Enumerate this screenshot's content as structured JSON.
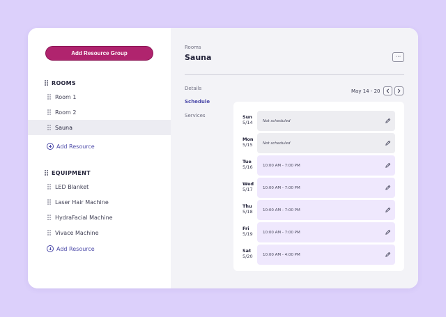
{
  "sidebar": {
    "add_group_label": "Add Resource Group",
    "groups": [
      {
        "title": "ROOMS",
        "items": [
          {
            "label": "Room 1",
            "active": false
          },
          {
            "label": "Room 2",
            "active": false
          },
          {
            "label": "Sauna",
            "active": true
          }
        ],
        "add_label": "Add Resource"
      },
      {
        "title": "EQUIPMENT",
        "items": [
          {
            "label": "LED Blanket",
            "active": false
          },
          {
            "label": "Laser Hair Machine",
            "active": false
          },
          {
            "label": "HydraFacial Machine",
            "active": false
          },
          {
            "label": "Vivace Machine",
            "active": false
          }
        ],
        "add_label": "Add Resource"
      }
    ]
  },
  "main": {
    "breadcrumb": "Rooms",
    "title": "Sauna",
    "more_label": "···",
    "tabs": [
      {
        "label": "Details",
        "active": false
      },
      {
        "label": "Schedule",
        "active": true
      },
      {
        "label": "Services",
        "active": false
      }
    ],
    "date_range": "May 14 - 20",
    "schedule": [
      {
        "day": "Sun",
        "date": "5/14",
        "hours": "Not scheduled",
        "scheduled": false
      },
      {
        "day": "Mon",
        "date": "5/15",
        "hours": "Not scheduled",
        "scheduled": false
      },
      {
        "day": "Tue",
        "date": "5/16",
        "hours": "10:00 AM - 7:00 PM",
        "scheduled": true
      },
      {
        "day": "Wed",
        "date": "5/17",
        "hours": "10:00 AM - 7:00 PM",
        "scheduled": true
      },
      {
        "day": "Thu",
        "date": "5/18",
        "hours": "10:00 AM - 7:00 PM",
        "scheduled": true
      },
      {
        "day": "Fri",
        "date": "5/19",
        "hours": "10:00 AM - 7:00 PM",
        "scheduled": true
      },
      {
        "day": "Sat",
        "date": "5/20",
        "hours": "10:00 AM - 4:00 PM",
        "scheduled": true
      }
    ]
  },
  "icons": {
    "drag_handle": "drag-handle-icon",
    "add": "plus-circle-icon",
    "edit": "pencil-icon",
    "prev": "chevron-left-icon",
    "next": "chevron-right-icon"
  },
  "colors": {
    "background": "#dcd0fb",
    "primary_button": "#b0246e",
    "accent": "#4b49a8",
    "scheduled_slot": "#efe8fd",
    "unscheduled_slot": "#ededf1"
  }
}
